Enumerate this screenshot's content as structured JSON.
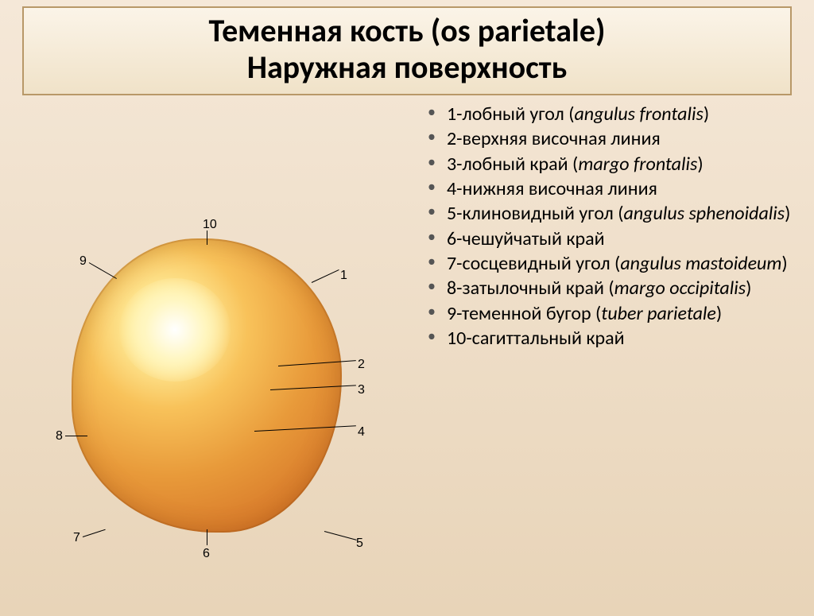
{
  "title": {
    "line1": "Теменная кость (os parietale)",
    "line2": "Наружная поверхность"
  },
  "labels": {
    "n1": "1",
    "n2": "2",
    "n3": "3",
    "n4": "4",
    "n5": "5",
    "n6": "6",
    "n7": "7",
    "n8": "8",
    "n9": "9",
    "n10": "10"
  },
  "list": [
    {
      "num": "1",
      "text": "лобный угол",
      "latin": "angulus frontalis"
    },
    {
      "num": "2",
      "text": "верхняя височная линия",
      "latin": null
    },
    {
      "num": "3",
      "text": "лобный край",
      "latin": "margo frontalis"
    },
    {
      "num": "4",
      "text": "нижняя височная линия",
      "latin": null
    },
    {
      "num": "5",
      "text": "клиновидный угол",
      "latin": "angulus sphenoidalis"
    },
    {
      "num": "6",
      "text": "чешуйчатый край",
      "latin": null
    },
    {
      "num": "7",
      "text": "сосцевидный угол",
      "latin": "angulus mastoideum"
    },
    {
      "num": "8",
      "text": "затылочный край",
      "latin": "margo occipitalis"
    },
    {
      "num": "9",
      "text": "теменной бугор",
      "latin": "tuber parietale"
    },
    {
      "num": "10",
      "text": "сагиттальный край",
      "latin": null
    }
  ],
  "style": {
    "title_fontsize": 40,
    "list_fontsize": 24,
    "background_gradient": [
      "#f5e8d8",
      "#e8d4b8"
    ],
    "title_border": "#b89868",
    "bone_colors": [
      "#fff9e0",
      "#ffec9a",
      "#f8c25a",
      "#e89a3a",
      "#d87a2a"
    ]
  }
}
